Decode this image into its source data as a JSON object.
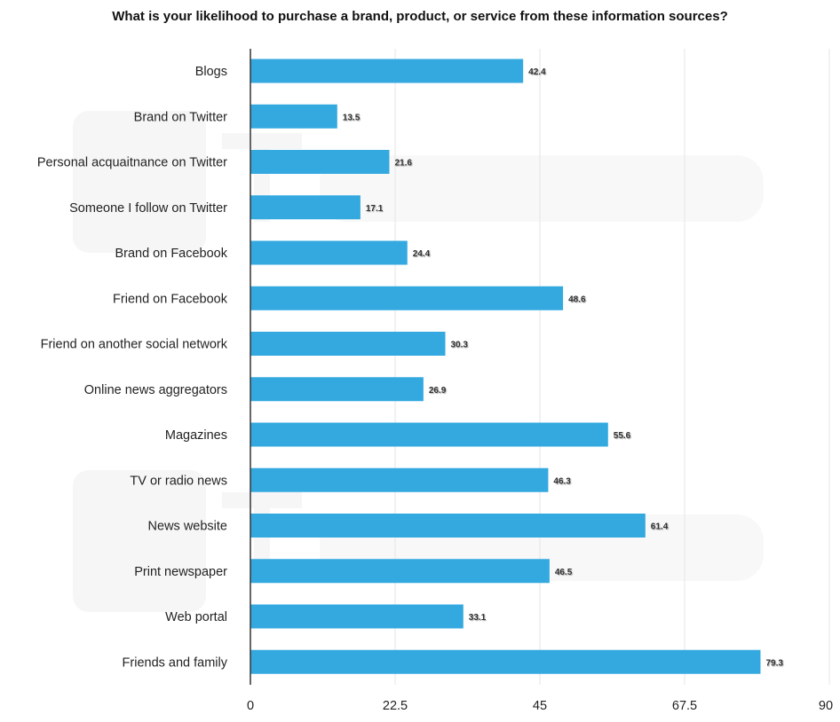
{
  "chart_data": {
    "type": "bar",
    "orientation": "horizontal",
    "title": "What is your likelihood to purchase a brand, product, or service from these information sources?",
    "categories": [
      "Blogs",
      "Brand on Twitter",
      "Personal acquaitnance on Twitter",
      "Someone I follow on Twitter",
      "Brand on Facebook",
      "Friend on Facebook",
      "Friend on another social network",
      "Online news aggregators",
      "Magazines",
      "TV or radio news",
      "News website",
      "Print newspaper",
      "Web portal",
      "Friends and family"
    ],
    "values": [
      42.4,
      13.5,
      21.6,
      17.1,
      24.4,
      48.6,
      30.3,
      26.9,
      55.6,
      46.3,
      61.4,
      46.5,
      33.1,
      79.3
    ],
    "data_labels": [
      "42.4",
      "13.5",
      "21.6",
      "17.1",
      "24.4",
      "48.6",
      "30.3",
      "26.9",
      "55.6",
      "46.3",
      "61.4",
      "46.5",
      "33.1",
      "79.3"
    ],
    "xlabel": "",
    "ylabel": "",
    "xlim": [
      0,
      90
    ],
    "x_ticks": [
      "0",
      "22.5",
      "45",
      "67.5",
      "90"
    ],
    "x_tick_values": [
      0,
      22.5,
      45,
      67.5,
      90
    ],
    "grid": true,
    "legend": "none",
    "bar_color": "#33a9e0",
    "watermark": "Technorati"
  }
}
